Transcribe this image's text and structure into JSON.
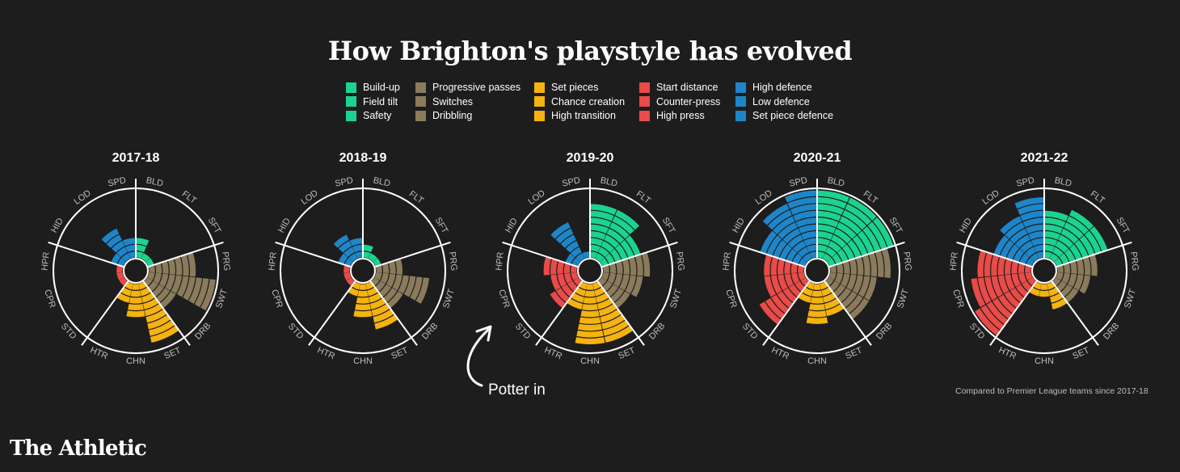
{
  "title": "How Brighton's playstyle has evolved",
  "legend": [
    [
      {
        "label": "Build-up",
        "color": "#1bd38f"
      },
      {
        "label": "Field tilt",
        "color": "#1bd38f"
      },
      {
        "label": "Safety",
        "color": "#1bd38f"
      }
    ],
    [
      {
        "label": "Progressive passes",
        "color": "#8a7b5c"
      },
      {
        "label": "Switches",
        "color": "#8a7b5c"
      },
      {
        "label": "Dribbling",
        "color": "#8a7b5c"
      }
    ],
    [
      {
        "label": "Set pieces",
        "color": "#f5b30f"
      },
      {
        "label": "Chance creation",
        "color": "#f5b30f"
      },
      {
        "label": "High transition",
        "color": "#f5b30f"
      }
    ],
    [
      {
        "label": "Start distance",
        "color": "#e84b48"
      },
      {
        "label": "Counter-press",
        "color": "#e84b48"
      },
      {
        "label": "High press",
        "color": "#e84b48"
      }
    ],
    [
      {
        "label": "High defence",
        "color": "#1e86c8"
      },
      {
        "label": "Low defence",
        "color": "#1e86c8"
      },
      {
        "label": "Set piece defence",
        "color": "#1e86c8"
      }
    ]
  ],
  "annotation": "Potter in",
  "footnote": "Compared to Premier League teams since 2017-18",
  "brand": "The Athletic",
  "chart_data": {
    "type": "polar_bar",
    "axis_labels": [
      "BLD",
      "FLT",
      "SFT",
      "PRG",
      "SWT",
      "DRB",
      "SET",
      "CHN",
      "HTR",
      "STD",
      "CPR",
      "HPR",
      "HID",
      "LOD",
      "SPD"
    ],
    "group_colors": [
      "#1bd38f",
      "#8a7b5c",
      "#f5b30f",
      "#e84b48",
      "#1e86c8"
    ],
    "wedges": [
      {
        "name": "Build-up/Field tilt/Safety",
        "color": "#1bd38f",
        "from": 0,
        "to": 3
      },
      {
        "name": "Progressive passes/Switches/Dribbling",
        "color": "#8a7b5c",
        "from": 3,
        "to": 6
      },
      {
        "name": "Set pieces/Chance creation/High transition",
        "color": "#f5b30f",
        "from": 6,
        "to": 9
      },
      {
        "name": "Start distance/Counter-press/High press",
        "color": "#e84b48",
        "from": 9,
        "to": 12
      },
      {
        "name": "High defence/Low defence/Set piece defence",
        "color": "#1e86c8",
        "from": 12,
        "to": 15
      }
    ],
    "scale_max": 10,
    "charts": [
      {
        "season": "2017-18",
        "values": [
          3,
          1,
          1,
          7,
          10,
          5,
          9,
          5,
          3,
          1,
          1,
          1,
          2,
          5,
          3
        ]
      },
      {
        "season": "2018-19",
        "values": [
          2,
          1,
          1,
          4,
          8,
          5,
          7,
          5,
          2,
          1,
          1,
          1,
          2,
          4,
          3
        ]
      },
      {
        "season": "2019-20",
        "values": [
          8,
          8,
          6,
          7,
          6,
          5,
          9,
          9,
          4,
          5,
          4,
          5,
          2,
          6,
          1
        ]
      },
      {
        "season": "2020-21",
        "values": [
          10,
          10,
          10,
          9,
          7,
          7,
          5,
          6,
          3,
          8,
          6,
          6,
          7,
          9,
          10
        ]
      },
      {
        "season": "2021-22",
        "values": [
          7,
          8,
          8,
          6,
          5,
          4,
          4,
          2,
          2,
          10,
          9,
          8,
          6,
          7,
          9
        ]
      }
    ]
  }
}
